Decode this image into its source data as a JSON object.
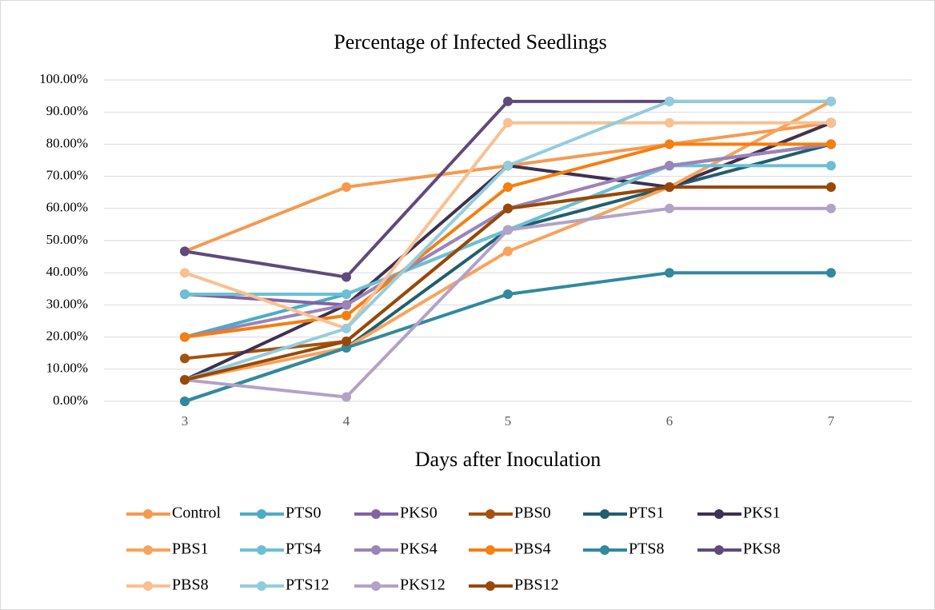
{
  "chart_data": {
    "type": "line",
    "title": "Percentage of Infected Seedlings",
    "x_label": "Days after Inoculation",
    "categories": [
      "3",
      "4",
      "5",
      "6",
      "7"
    ],
    "ylim": [
      0,
      100
    ],
    "yticks": [
      {
        "value": 0,
        "label": "0.00%"
      },
      {
        "value": 10,
        "label": "10.00%"
      },
      {
        "value": 20,
        "label": "20.00%"
      },
      {
        "value": 30,
        "label": "30.00%"
      },
      {
        "value": 40,
        "label": "40.00%"
      },
      {
        "value": 50,
        "label": "50.00%"
      },
      {
        "value": 60,
        "label": "60.00%"
      },
      {
        "value": 70,
        "label": "70.00%"
      },
      {
        "value": 80,
        "label": "80.00%"
      },
      {
        "value": 90,
        "label": "90.00%"
      },
      {
        "value": 100,
        "label": "100.00%"
      }
    ],
    "grid": true,
    "legend": "bottom",
    "series": [
      {
        "name": "Control",
        "color": "#f59a4f",
        "values": [
          46.67,
          66.67,
          73.33,
          80,
          86.67
        ]
      },
      {
        "name": "PTS0",
        "color": "#4bacc6",
        "values": [
          20,
          33.33,
          53.33,
          73.33,
          80
        ]
      },
      {
        "name": "PKS0",
        "color": "#8064a2",
        "values": [
          33.33,
          30,
          60,
          73.33,
          80
        ]
      },
      {
        "name": "PBS0",
        "color": "#a5520e",
        "values": [
          13.33,
          18.67,
          60,
          66.67,
          86.67
        ]
      },
      {
        "name": "PTS1",
        "color": "#215e6e",
        "values": [
          0,
          16.67,
          53.33,
          66.67,
          80
        ]
      },
      {
        "name": "PKS1",
        "color": "#3f3151",
        "values": [
          6.67,
          30,
          73.33,
          66.67,
          86.67
        ]
      },
      {
        "name": "PBS1",
        "color": "#f7a35c",
        "values": [
          6.67,
          16.67,
          46.67,
          66.67,
          93.33
        ]
      },
      {
        "name": "PTS4",
        "color": "#6cc0d4",
        "values": [
          33.33,
          33.33,
          53.33,
          73.33,
          73.33
        ]
      },
      {
        "name": "PKS4",
        "color": "#9b84b8",
        "values": [
          20,
          30,
          60,
          73.33,
          80
        ]
      },
      {
        "name": "PBS4",
        "color": "#f57f0f",
        "values": [
          20,
          26.67,
          66.67,
          80,
          80
        ]
      },
      {
        "name": "PTS8",
        "color": "#31899f",
        "values": [
          0,
          16.67,
          33.33,
          40,
          40
        ]
      },
      {
        "name": "PKS8",
        "color": "#604a7b",
        "values": [
          46.67,
          38.67,
          93.33,
          93.33,
          93.33
        ]
      },
      {
        "name": "PBS8",
        "color": "#fac090",
        "values": [
          40,
          22.67,
          86.67,
          86.67,
          86.67
        ]
      },
      {
        "name": "PTS12",
        "color": "#93cddd",
        "values": [
          6.67,
          22.67,
          73.33,
          93.33,
          93.33
        ]
      },
      {
        "name": "PKS12",
        "color": "#b3a2c7",
        "values": [
          6.67,
          1.33,
          53.33,
          60,
          60
        ]
      },
      {
        "name": "PBS12",
        "color": "#984807",
        "values": [
          6.67,
          18.67,
          60,
          66.67,
          66.67
        ]
      }
    ]
  }
}
